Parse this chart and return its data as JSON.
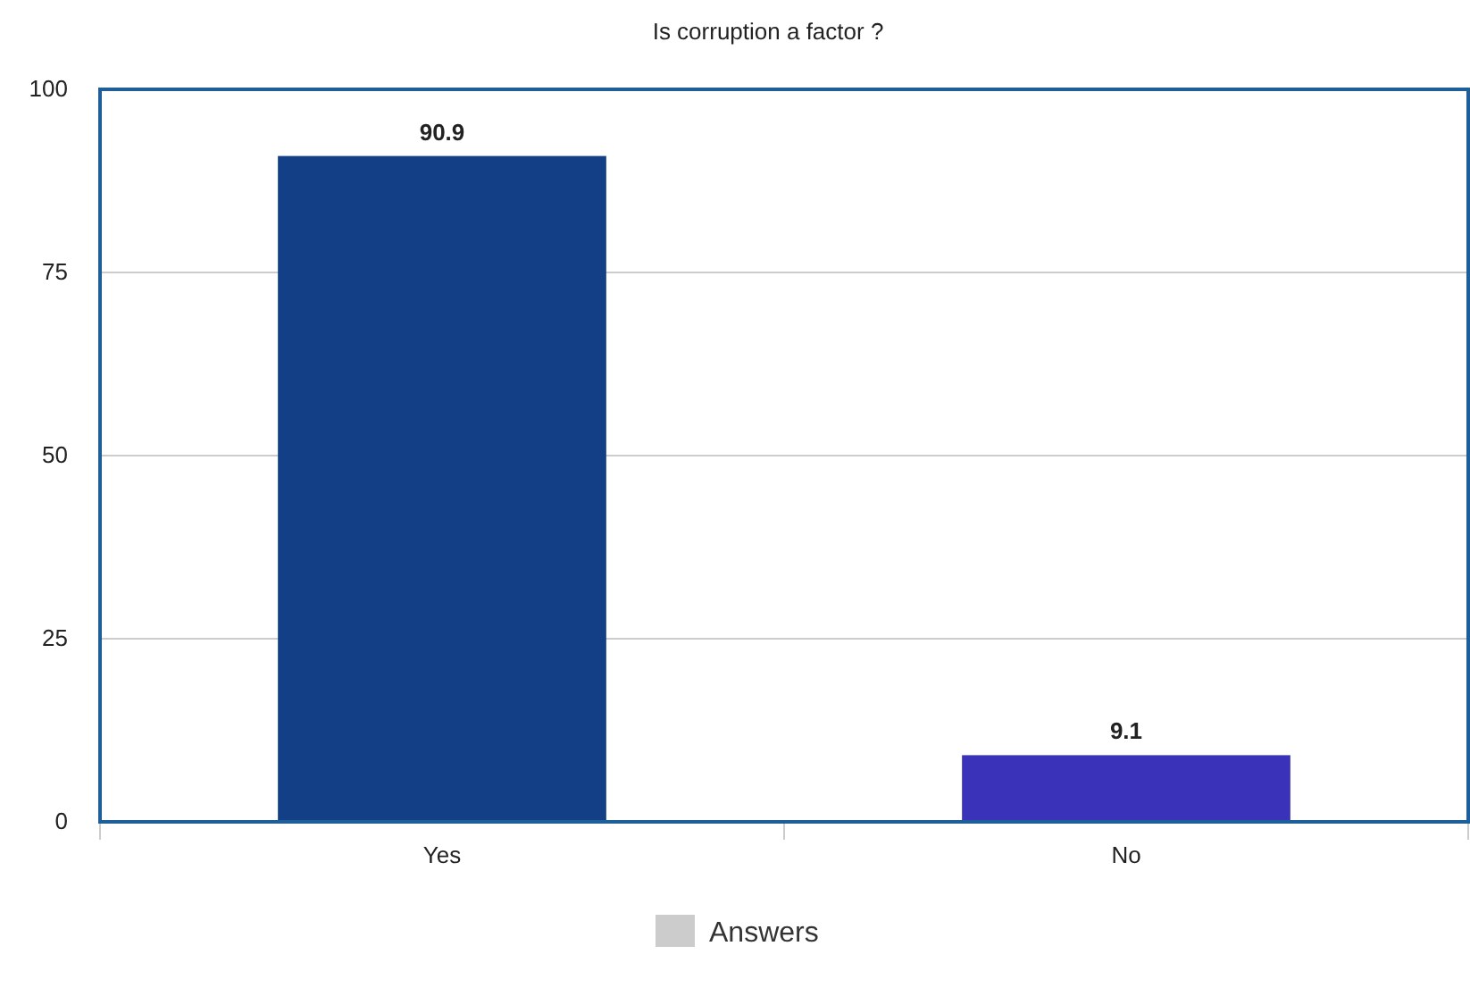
{
  "chart_data": {
    "type": "bar",
    "title": "Is corruption a factor ?",
    "categories": [
      "Yes",
      "No"
    ],
    "series": [
      {
        "name": "Answers",
        "color": "#cccccc",
        "colors": [
          "#123f85",
          "#3a32b8"
        ],
        "values": [
          90.9,
          9.1
        ]
      }
    ],
    "ylim": [
      0,
      100
    ],
    "yticks": [
      0,
      25,
      50,
      75,
      100
    ],
    "grid": "y",
    "legend": "bottom",
    "data_labels": true
  }
}
